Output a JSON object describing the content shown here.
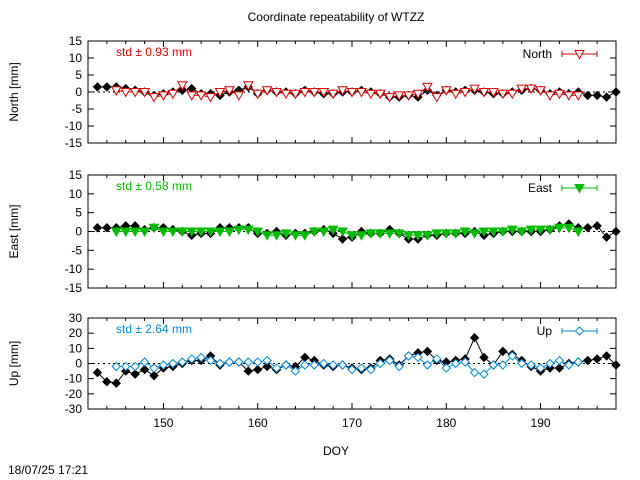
{
  "title": "Coordinate repeatability of WTZZ",
  "timestamp": "18/07/25 17:21",
  "chart_data": [
    {
      "type": "line",
      "panel": "north",
      "ylabel": "North [mm]",
      "ylim": [
        -15,
        15
      ],
      "yticks": [
        15,
        10,
        5,
        0,
        -5,
        -10,
        -15
      ],
      "xlim": [
        142,
        198
      ],
      "std_label": "std ± 0.93 mm",
      "std_color": "#dd0000",
      "legend": "North",
      "legend_placement": "top-right",
      "series": [
        {
          "color": "#000000",
          "marker": "diamond",
          "x": [
            143,
            144,
            145,
            146,
            147,
            148,
            149,
            150,
            151,
            152,
            153,
            154,
            155,
            156,
            157,
            158,
            159,
            160,
            161,
            162,
            163,
            164,
            165,
            166,
            167,
            168,
            169,
            170,
            171,
            172,
            173,
            174,
            175,
            176,
            177,
            178,
            179,
            180,
            181,
            182,
            183,
            184,
            185,
            186,
            187,
            188,
            189,
            190,
            191,
            192,
            193,
            194,
            195,
            196,
            197,
            198
          ],
          "y": [
            1.5,
            1.5,
            1.5,
            1,
            0.5,
            0,
            -1,
            -0.5,
            0,
            0.5,
            1,
            -0.5,
            -0.5,
            -1,
            0,
            0.5,
            1.5,
            -0.5,
            0.5,
            0,
            0,
            -0.5,
            0.5,
            0,
            -0.5,
            -0.5,
            0,
            0,
            0.5,
            0,
            -0.5,
            -1.5,
            -1.5,
            -1,
            -1.5,
            0.5,
            -1,
            0.5,
            0,
            0.5,
            0.5,
            0,
            -0.5,
            -0.5,
            0,
            0.5,
            1,
            0.5,
            -0.5,
            0,
            -0.5,
            0,
            -1,
            -1,
            -1.5,
            0
          ]
        },
        {
          "color": "#dd0000",
          "marker": "triangle-down-open",
          "x": [
            145,
            146,
            147,
            148,
            149,
            150,
            151,
            152,
            153,
            154,
            155,
            156,
            157,
            158,
            159,
            160,
            161,
            162,
            163,
            164,
            165,
            166,
            167,
            168,
            169,
            170,
            171,
            172,
            173,
            174,
            175,
            176,
            177,
            178,
            179,
            180,
            181,
            182,
            183,
            184,
            185,
            186,
            187,
            188,
            189,
            190,
            191,
            192,
            193,
            194
          ],
          "y": [
            0.5,
            0,
            0,
            0,
            -1.5,
            -1,
            -0.5,
            2,
            -1,
            -1,
            -1.5,
            0,
            0.5,
            -1,
            2,
            -0.5,
            0.5,
            0,
            -0.5,
            -0.5,
            0,
            0,
            0,
            -0.5,
            0.5,
            0,
            0,
            -0.5,
            -0.5,
            -1.5,
            -1,
            -1,
            -0.5,
            1.5,
            -1.5,
            0.5,
            -0.5,
            0,
            1,
            0,
            0,
            -0.5,
            -0.5,
            1,
            1,
            0.5,
            -1,
            -0.5,
            -1,
            -1
          ]
        }
      ]
    },
    {
      "type": "line",
      "panel": "east",
      "ylabel": "East [mm]",
      "ylim": [
        -15,
        15
      ],
      "yticks": [
        15,
        10,
        5,
        0,
        -5,
        -10,
        -15
      ],
      "xlim": [
        142,
        198
      ],
      "std_label": "std ± 0.58 mm",
      "std_color": "#00bb00",
      "legend": "East",
      "legend_placement": "top-right",
      "series": [
        {
          "color": "#000000",
          "marker": "diamond",
          "x": [
            143,
            144,
            145,
            146,
            147,
            148,
            149,
            150,
            151,
            152,
            153,
            154,
            155,
            156,
            157,
            158,
            159,
            160,
            161,
            162,
            163,
            164,
            165,
            166,
            167,
            168,
            169,
            170,
            171,
            172,
            173,
            174,
            175,
            176,
            177,
            178,
            179,
            180,
            181,
            182,
            183,
            184,
            185,
            186,
            187,
            188,
            189,
            190,
            191,
            192,
            193,
            194,
            195,
            196,
            197,
            198
          ],
          "y": [
            1,
            1,
            1,
            1.5,
            1.5,
            0.5,
            1,
            1,
            0.5,
            0,
            -1,
            -0.5,
            -0.5,
            1,
            1,
            1,
            1,
            -0.5,
            -0.5,
            0,
            -1,
            -0.5,
            -0.5,
            0,
            0.5,
            -0.5,
            -2,
            -1.5,
            0,
            -0.5,
            -0.5,
            0.5,
            -0.5,
            -2,
            -2,
            -1,
            -1,
            -0.5,
            -0.5,
            -0.5,
            0,
            -1,
            -0.5,
            0,
            0,
            0,
            0,
            0,
            0.5,
            1.5,
            2,
            1,
            1,
            1.5,
            -1.5,
            0
          ]
        },
        {
          "color": "#00bb00",
          "marker": "triangle-down-filled",
          "x": [
            145,
            146,
            147,
            148,
            149,
            150,
            151,
            152,
            153,
            154,
            155,
            156,
            157,
            158,
            159,
            160,
            161,
            162,
            163,
            164,
            165,
            166,
            167,
            168,
            169,
            170,
            171,
            172,
            173,
            174,
            175,
            176,
            177,
            178,
            179,
            180,
            181,
            182,
            183,
            184,
            185,
            186,
            187,
            188,
            189,
            190,
            191,
            192,
            193,
            194
          ],
          "y": [
            0,
            0,
            0,
            0,
            1,
            0,
            0,
            0,
            0,
            0,
            0,
            0,
            0,
            0.5,
            0.5,
            0,
            -1,
            -1,
            -0.5,
            -1,
            -1,
            0,
            0,
            0.5,
            0,
            -1,
            -1,
            -0.5,
            -0.5,
            -0.5,
            -0.5,
            -1,
            -1,
            -1,
            -0.5,
            -0.5,
            -0.5,
            0,
            -0.5,
            0,
            0,
            0,
            0.5,
            0,
            0.5,
            0.5,
            0.5,
            1,
            1,
            0
          ]
        }
      ]
    },
    {
      "type": "line",
      "panel": "up",
      "ylabel": "Up [mm]",
      "ylim": [
        -30,
        30
      ],
      "yticks": [
        30,
        20,
        10,
        0,
        -10,
        -20,
        -30
      ],
      "xlim": [
        142,
        198
      ],
      "xticks": [
        150,
        160,
        170,
        180,
        190
      ],
      "xlabel": "DOY",
      "std_label": "std ± 2.64 mm",
      "std_color": "#0088dd",
      "legend": "Up",
      "legend_placement": "top-right",
      "series": [
        {
          "color": "#000000",
          "marker": "diamond",
          "x": [
            143,
            144,
            145,
            146,
            147,
            148,
            149,
            150,
            151,
            152,
            153,
            154,
            155,
            156,
            157,
            158,
            159,
            160,
            161,
            162,
            163,
            164,
            165,
            166,
            167,
            168,
            169,
            170,
            171,
            172,
            173,
            174,
            175,
            176,
            177,
            178,
            179,
            180,
            181,
            182,
            183,
            184,
            185,
            186,
            187,
            188,
            189,
            190,
            191,
            192,
            193,
            194,
            195,
            196,
            197,
            198
          ],
          "y": [
            -6,
            -12,
            -13,
            -5,
            -7,
            -4,
            -8,
            -3,
            -2,
            0,
            2,
            2,
            5,
            -1,
            1,
            1,
            -5,
            -4,
            -2,
            -4,
            -1,
            -2,
            4,
            2,
            -1,
            -2,
            -1,
            -3,
            -4,
            -3,
            2,
            3,
            -1,
            5,
            7,
            8,
            2,
            1,
            2,
            3,
            17,
            4,
            -1,
            8,
            6,
            2,
            -2,
            -5,
            -3,
            -3,
            0,
            1,
            2,
            3,
            5,
            -1
          ]
        },
        {
          "color": "#0088dd",
          "marker": "diamond-open",
          "x": [
            145,
            146,
            147,
            148,
            149,
            150,
            151,
            152,
            153,
            154,
            155,
            156,
            157,
            158,
            159,
            160,
            161,
            162,
            163,
            164,
            165,
            166,
            167,
            168,
            169,
            170,
            171,
            172,
            173,
            174,
            175,
            176,
            177,
            178,
            179,
            180,
            181,
            182,
            183,
            184,
            185,
            186,
            187,
            188,
            189,
            190,
            191,
            192,
            193,
            194
          ],
          "y": [
            -2,
            -2,
            -2,
            1,
            -3,
            -1,
            0,
            1,
            3,
            4,
            2,
            0,
            1,
            1,
            1,
            1,
            2,
            -3,
            -1,
            -5,
            -1,
            -1,
            0,
            -1,
            -1,
            -4,
            -3,
            -4,
            0,
            2,
            -2,
            5,
            4,
            -1,
            3,
            -3,
            0,
            1,
            -6,
            -7,
            -1,
            -1,
            5,
            0,
            -1,
            -3,
            0,
            2,
            -1,
            1
          ]
        }
      ]
    }
  ]
}
